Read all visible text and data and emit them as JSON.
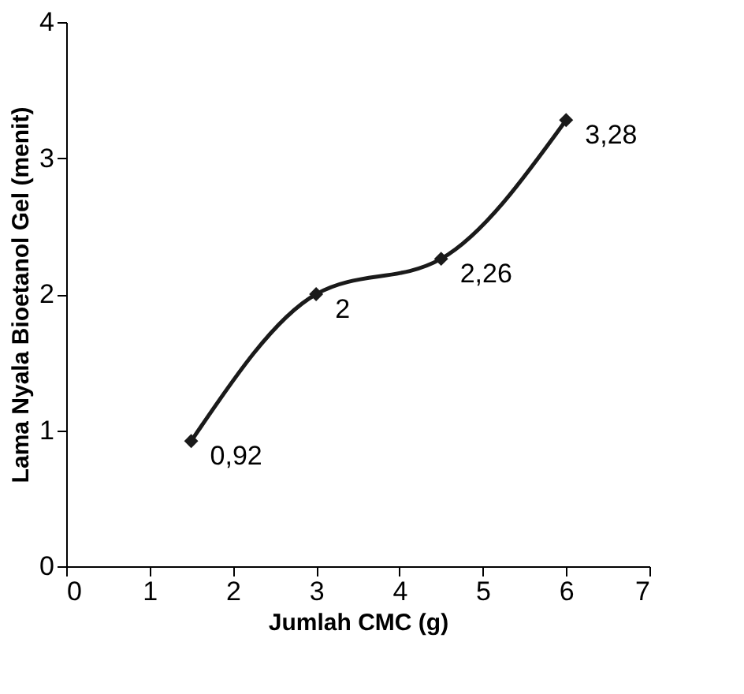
{
  "chart_data": {
    "type": "line",
    "xlabel": "Jumlah CMC (g)",
    "ylabel": "Lama Nyala Bioetanol Gel (menit)",
    "x": [
      1.5,
      3,
      4.5,
      6
    ],
    "series": [
      {
        "color": "#1a1a1a",
        "values": [
          0.92,
          2,
          2.26,
          3.28
        ],
        "value_labels": [
          "0,92",
          "2",
          "2,26",
          "3,28"
        ]
      }
    ],
    "xlim": [
      0,
      7
    ],
    "xticks": [
      0,
      1,
      2,
      3,
      4,
      5,
      6,
      7
    ],
    "ylim": [
      0,
      4
    ],
    "yticks": [
      0,
      1,
      2,
      3,
      4
    ],
    "grid": false,
    "marker": "diamond",
    "line_style": "solid"
  }
}
